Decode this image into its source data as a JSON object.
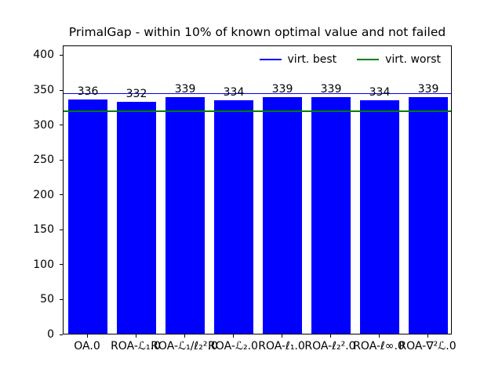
{
  "chart_data": {
    "type": "bar",
    "title": "PrimalGap - within 10% of known optimal value and not failed",
    "categories": [
      "OA.0",
      "ROA-ℒ₁.0",
      "ROA-ℒ₁/ℓ₂².0",
      "ROA-ℒ₂.0",
      "ROA-ℓ₁.0",
      "ROA-ℓ₂².0",
      "ROA-ℓ∞.0",
      "ROA-∇²ℒ.0"
    ],
    "values": [
      336,
      332,
      339,
      334,
      339,
      339,
      334,
      339
    ],
    "bar_color": "#0000ff",
    "hlines": [
      {
        "label": "virt. best",
        "value": 346,
        "color": "#0000ff"
      },
      {
        "label": "virt. worst",
        "value": 321,
        "color": "#008000"
      }
    ],
    "xlabel": "",
    "ylabel": "",
    "ylim": [
      0,
      414
    ],
    "yticks": [
      0,
      50,
      100,
      150,
      200,
      250,
      300,
      350,
      400
    ],
    "legend_position": "upper right",
    "grid": false,
    "background_color": "#ffffff",
    "text_color": "#000000"
  }
}
